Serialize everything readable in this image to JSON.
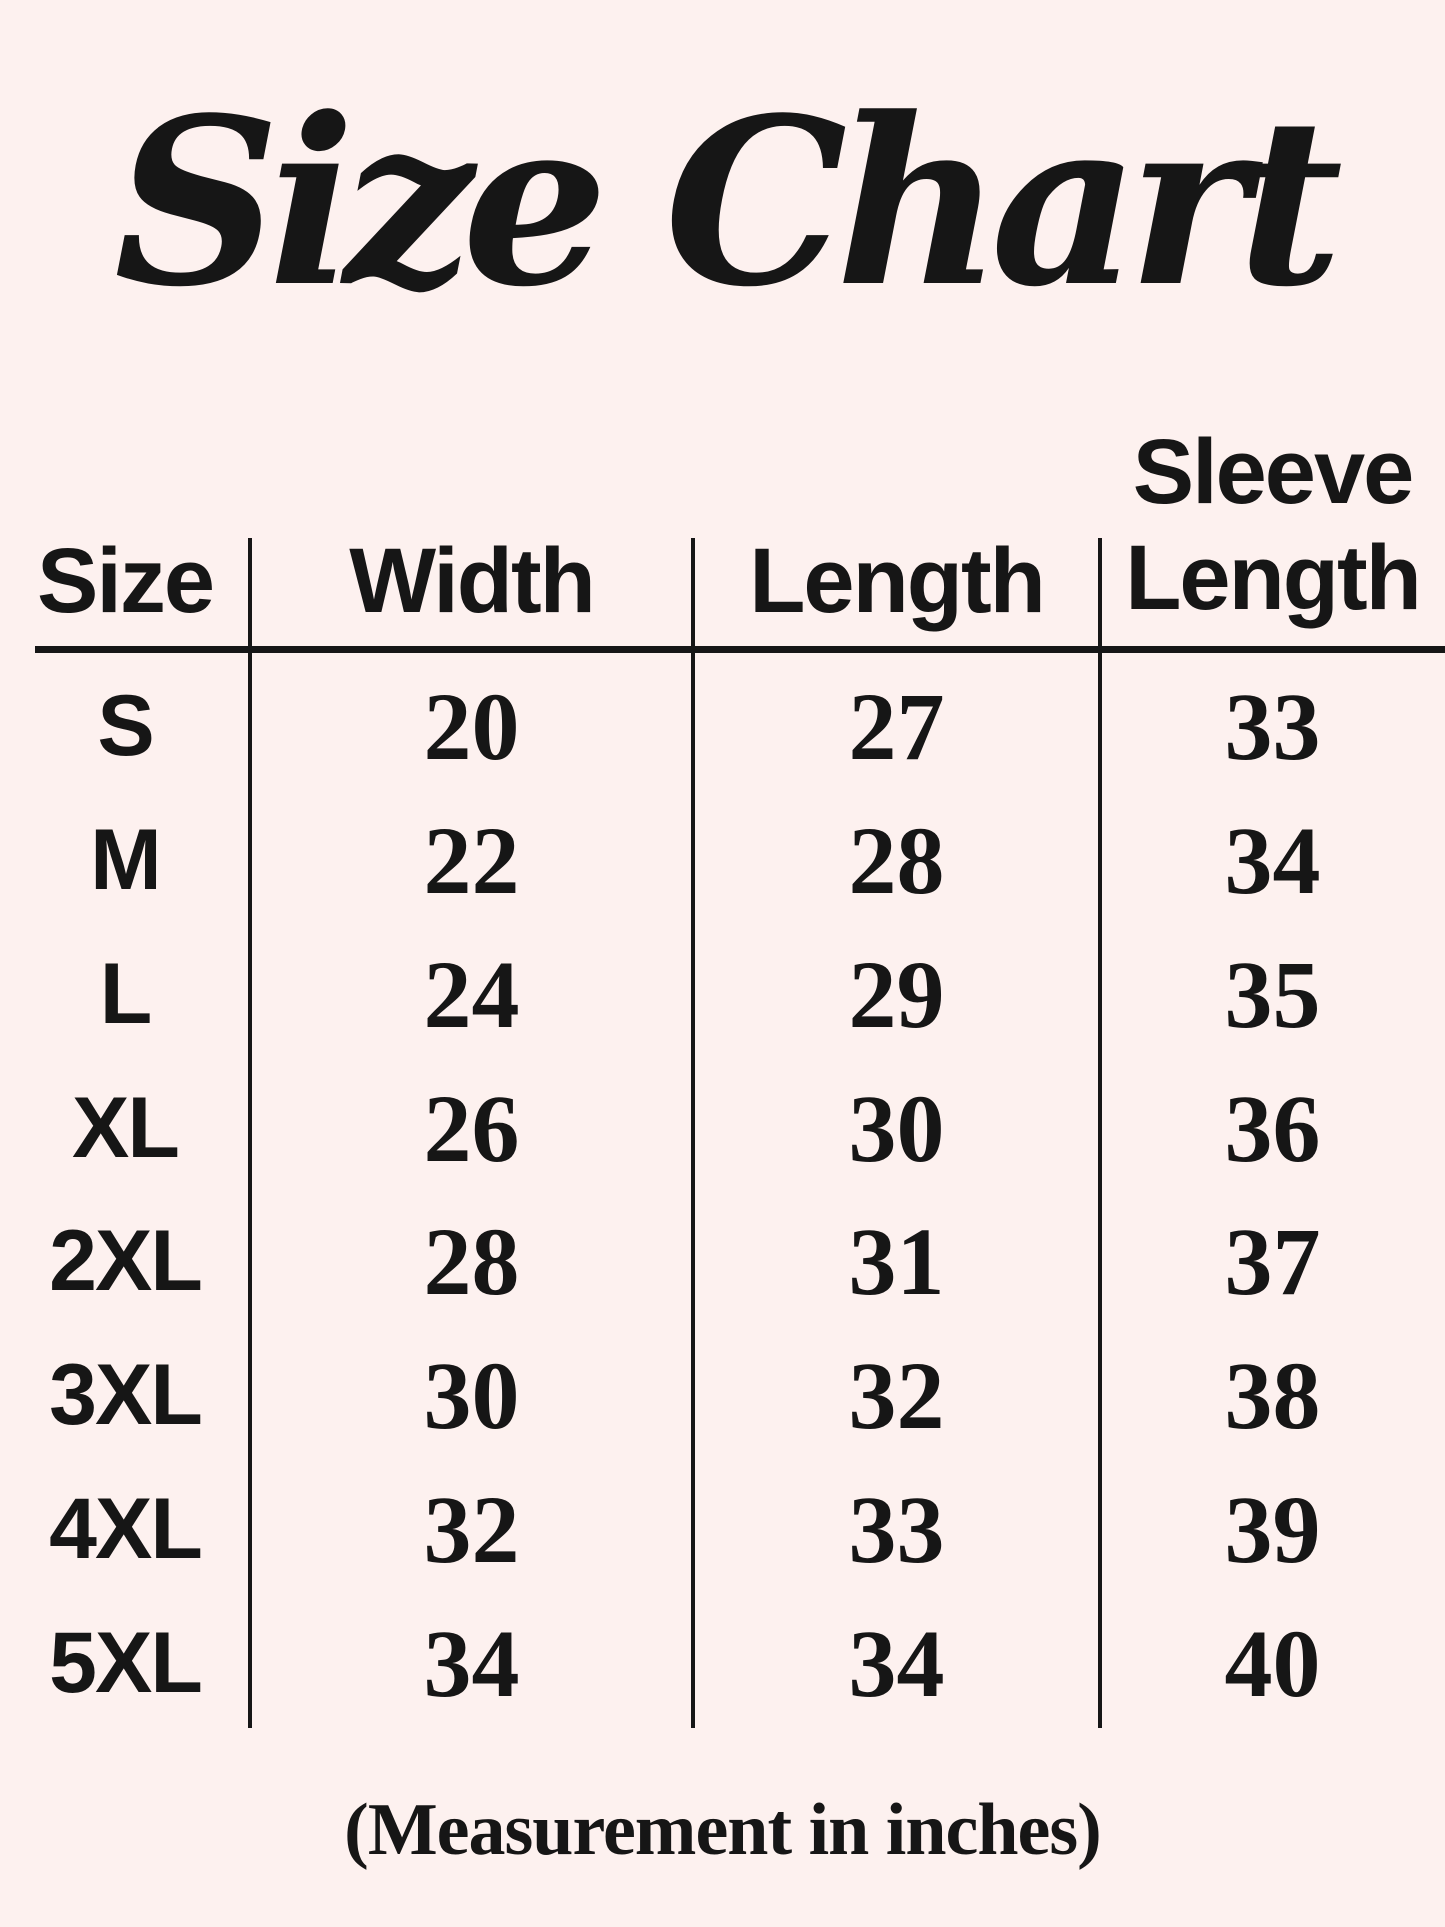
{
  "colors": {
    "background": "#fdf1ef",
    "ink": "#161616"
  },
  "title": "Size Chart",
  "table": {
    "header": {
      "size": "Size",
      "width": "Width",
      "length": "Length",
      "sleeve_line1": "Sleeve",
      "sleeve_line2": "Length"
    },
    "rows": [
      {
        "size": "S",
        "width": "20",
        "length": "27",
        "sleeve": "33"
      },
      {
        "size": "M",
        "width": "22",
        "length": "28",
        "sleeve": "34"
      },
      {
        "size": "L",
        "width": "24",
        "length": "29",
        "sleeve": "35"
      },
      {
        "size": "XL",
        "width": "26",
        "length": "30",
        "sleeve": "36"
      },
      {
        "size": "2XL",
        "width": "28",
        "length": "31",
        "sleeve": "37"
      },
      {
        "size": "3XL",
        "width": "30",
        "length": "32",
        "sleeve": "38"
      },
      {
        "size": "4XL",
        "width": "32",
        "length": "33",
        "sleeve": "39"
      },
      {
        "size": "5XL",
        "width": "34",
        "length": "34",
        "sleeve": "40"
      }
    ]
  },
  "footnote": "(Measurement in inches)",
  "chart_data": {
    "type": "table",
    "title": "Size Chart",
    "columns": [
      "Size",
      "Width",
      "Length",
      "Sleeve Length"
    ],
    "units": "inches",
    "rows": [
      [
        "S",
        20,
        27,
        33
      ],
      [
        "M",
        22,
        28,
        34
      ],
      [
        "L",
        24,
        29,
        35
      ],
      [
        "XL",
        26,
        30,
        36
      ],
      [
        "2XL",
        28,
        31,
        37
      ],
      [
        "3XL",
        30,
        32,
        38
      ],
      [
        "4XL",
        32,
        33,
        39
      ],
      [
        "5XL",
        34,
        34,
        40
      ]
    ],
    "note": "(Measurement in inches)"
  }
}
